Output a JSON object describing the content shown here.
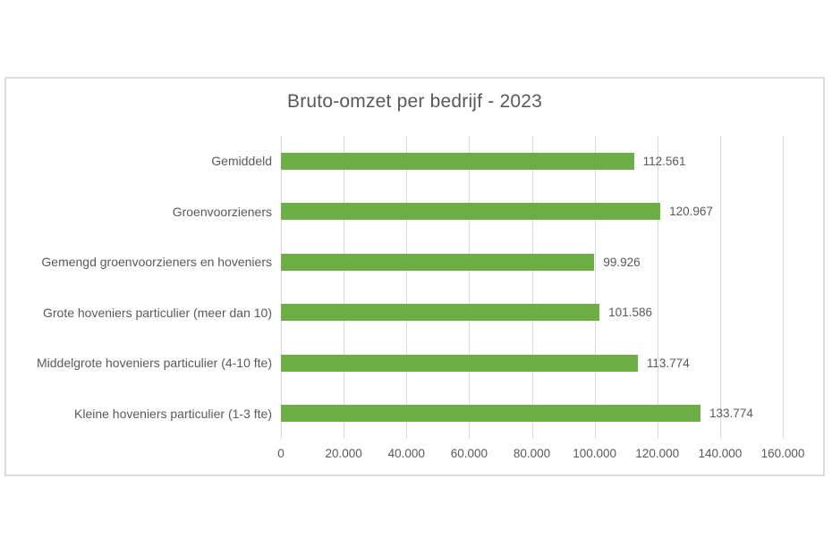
{
  "chart_data": {
    "type": "bar",
    "orientation": "horizontal",
    "title": "Bruto-omzet per bedrijf - 2023",
    "categories": [
      "Gemiddeld",
      "Groenvoorzieners",
      "Gemengd groenvoorzieners en hoveniers",
      "Grote hoveniers particulier (meer dan 10)",
      "Middelgrote hoveniers particulier (4-10 fte)",
      "Kleine hoveniers particulier (1-3 fte)"
    ],
    "values": [
      112561,
      120967,
      99926,
      101586,
      113774,
      133774
    ],
    "data_labels": [
      "112.561",
      "120.967",
      "99.926",
      "101.586",
      "113.774",
      "133.774"
    ],
    "xlim": [
      0,
      160000
    ],
    "x_tick_values": [
      0,
      20000,
      40000,
      60000,
      80000,
      100000,
      120000,
      140000,
      160000
    ],
    "x_tick_labels": [
      "0",
      "20.000",
      "40.000",
      "60.000",
      "80.000",
      "100.000",
      "120.000",
      "140.000",
      "160.000"
    ],
    "xlabel": "",
    "ylabel": "",
    "grid": "vertical-only",
    "legend": "none",
    "colors": {
      "bar": "#6fad47",
      "gridline": "#d9d9d9",
      "frame_border": "#dcdcdc",
      "title_text": "#595959",
      "axis_text": "#595959",
      "data_label_text": "#595959",
      "background": "#ffffff"
    }
  }
}
